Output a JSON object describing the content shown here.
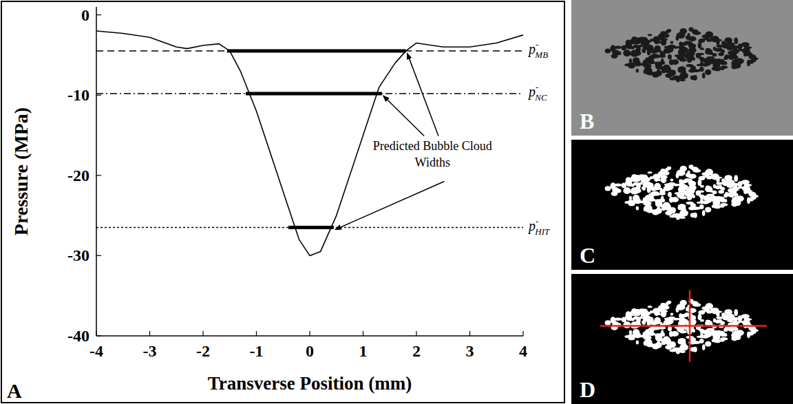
{
  "chart_data": {
    "type": "line",
    "panel_label": "A",
    "x_label": "Transverse Position (mm)",
    "y_label": "Pressure (MPa)",
    "x": [
      -4,
      -3.5,
      -3,
      -2.5,
      -2.3,
      -2,
      -1.7,
      -1.5,
      -1.3,
      -1,
      -0.5,
      -0.2,
      0,
      0.2,
      0.5,
      1,
      1.3,
      1.6,
      1.8,
      2,
      2.3,
      2.5,
      3,
      3.5,
      4
    ],
    "series": [
      {
        "color": "#000000",
        "values": [
          -2,
          -2.3,
          -2.8,
          -4,
          -4.2,
          -3.8,
          -3.6,
          -4.5,
          -7,
          -12,
          -22,
          -28,
          -30,
          -29.5,
          -25,
          -15,
          -9,
          -6,
          -4.5,
          -3.5,
          -3.8,
          -4,
          -4,
          -3.5,
          -2.5
        ]
      }
    ],
    "xlim": [
      -4,
      4
    ],
    "ylim": [
      -40,
      1
    ],
    "xticks": [
      -4,
      -3,
      -2,
      -1,
      0,
      1,
      2,
      3,
      4
    ],
    "yticks": [
      -40,
      -30,
      -20,
      -10,
      0
    ],
    "grid": false,
    "thresholds": [
      {
        "symbol": "p",
        "sup": "-",
        "sub": "MB",
        "value": -4.5,
        "line_style": "dashed",
        "width_from": -1.55,
        "width_to": 1.8
      },
      {
        "symbol": "p",
        "sup": "-",
        "sub": "NC",
        "value": -9.8,
        "line_style": "dashdot",
        "width_from": -1.2,
        "width_to": 1.35
      },
      {
        "symbol": "p",
        "sup": "-",
        "sub": "HIT",
        "value": -26.5,
        "line_style": "dotted",
        "width_from": -0.4,
        "width_to": 0.45
      }
    ],
    "annotations": [
      {
        "text": "Predicted Bubble Cloud Widths"
      }
    ]
  },
  "images": [
    {
      "label": "B"
    },
    {
      "label": "C"
    },
    {
      "label": "D"
    }
  ]
}
